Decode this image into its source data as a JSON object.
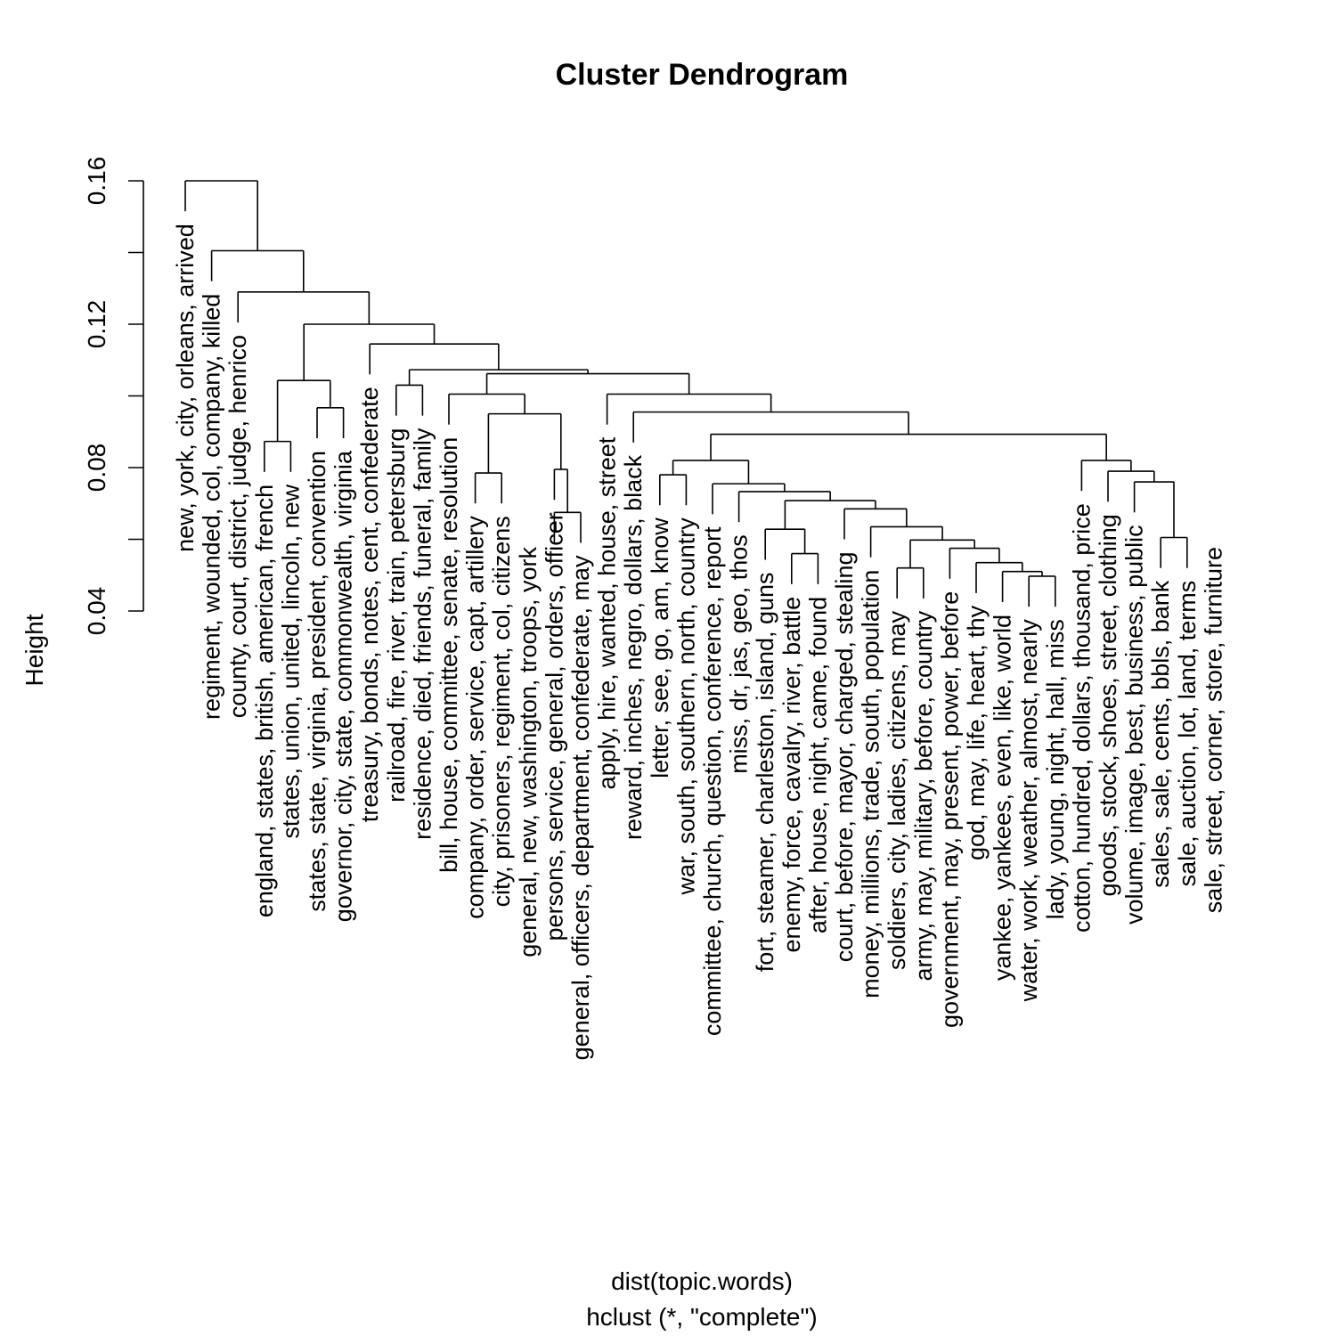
{
  "chart_data": {
    "type": "dendrogram",
    "title": "Cluster Dendrogram",
    "xlabel": "dist(topic.words)",
    "sub": "hclust (*, \"complete\")",
    "ylabel": "Height",
    "ylim": [
      0.04,
      0.16
    ],
    "yticks": [
      0.04,
      0.08,
      0.12,
      0.16
    ],
    "ytick_labels": [
      "0.04",
      "0.08",
      "0.12",
      "0.16"
    ],
    "hang_height": 0.0085,
    "leaves": [
      "new, york, city, orleans, arrived",
      "regiment, wounded, col, company, killed",
      "county, court, district, judge, henrico",
      "england, states, british, american, french",
      "states, union, united, lincoln, new",
      "states, state, virginia, president, convention",
      "governor, city, state, commonwealth, virginia",
      "treasury, bonds, notes, cent, confederate",
      "railroad, fire, river, train, petersburg",
      "residence, died, friends, funeral, family",
      "bill, house, committee, senate, resolution",
      "company, order, service, capt, artillery",
      "city, prisoners, regiment, col, citizens",
      "general, new, washington, troops, york",
      "persons, service, general, orders, officer",
      "general, officers, department, confederate, may",
      "apply, hire, wanted, house, street",
      "reward, inches, negro, dollars, black",
      "letter, see, go, am, know",
      "war, south, southern, north, country",
      "committee, church, question, conference, report",
      "miss, dr, jas, geo, thos",
      "fort, steamer, charleston, island, guns",
      "enemy, force, cavalry, river, battle",
      "after, house, night, came, found",
      "court, before, mayor, charged, stealing",
      "money, millions, trade, south, population",
      "soldiers, city, ladies, citizens, may",
      "army, may, military, before, country",
      "government, may, present, power, before",
      "god, may, life, heart, thy",
      "yankee, yankees, even, like, world",
      "water, work, weather, almost, nearly",
      "lady, young, night, hall, miss",
      "cotton, hundred, dollars, thousand, price",
      "goods, stock, shoes, street, clothing",
      "volume, image, best, business, public",
      "sales, sale, cents, bbls, bank",
      "sale, auction, lot, land, terms",
      "sale, street, corner, store, furniture"
    ],
    "merges": [
      {
        "a": "L33",
        "b": "L34",
        "h": 0.0497
      },
      {
        "a": "L38",
        "b": "L39",
        "h": 0.0605
      },
      {
        "a": "L32",
        "b": "M0",
        "h": 0.051
      },
      {
        "a": "L24",
        "b": "L25",
        "h": 0.056
      },
      {
        "a": "L37",
        "b": "M1",
        "h": 0.076
      },
      {
        "a": "L31",
        "b": "M2",
        "h": 0.0535
      },
      {
        "a": "L23",
        "b": "M3",
        "h": 0.0628
      },
      {
        "a": "L30",
        "b": "M5",
        "h": 0.0575
      },
      {
        "a": "L29",
        "b": "L28",
        "h": 0.052
      },
      {
        "a": "L36",
        "b": "M4",
        "h": 0.079
      },
      {
        "a": "M8",
        "b": "M7",
        "h": 0.0598
      },
      {
        "a": "L27",
        "b": "M10",
        "h": 0.0635
      },
      {
        "a": "L26",
        "b": "M11",
        "h": 0.0685
      },
      {
        "a": "L35",
        "b": "M9",
        "h": 0.082
      },
      {
        "a": "M12",
        "b": "M6",
        "h": 0.0708
      },
      {
        "a": "L22",
        "b": "M14",
        "h": 0.0733
      },
      {
        "a": "L21",
        "b": "M15",
        "h": 0.0755
      },
      {
        "a": "L19",
        "b": "L20",
        "h": 0.078
      },
      {
        "a": "M17",
        "b": "M16",
        "h": 0.082
      },
      {
        "a": "L15",
        "b": "L16",
        "h": 0.0675
      },
      {
        "a": "L15b",
        "b": "M19",
        "h": 0.0795
      },
      {
        "a": "L12",
        "b": "L13",
        "h": 0.0785
      },
      {
        "a": "M18",
        "b": "M13",
        "h": 0.0893
      },
      {
        "a": "L4",
        "b": "L5",
        "h": 0.0873
      },
      {
        "a": "L6",
        "b": "L7",
        "h": 0.0967
      },
      {
        "a": "L18",
        "b": "M22",
        "h": 0.0955
      },
      {
        "a": "M21",
        "b": "M20",
        "h": 0.095
      },
      {
        "a": "L9",
        "b": "L10",
        "h": 0.103
      },
      {
        "a": "L17",
        "b": "M25",
        "h": 0.1005
      },
      {
        "a": "L11",
        "b": "M26",
        "h": 0.1005
      },
      {
        "a": "M23",
        "b": "M24",
        "h": 0.1043
      },
      {
        "a": "M29",
        "b": "M28",
        "h": 0.1062
      },
      {
        "a": "M27",
        "b": "M31",
        "h": 0.1073
      },
      {
        "a": "L8",
        "b": "M32",
        "h": 0.1145
      },
      {
        "a": "M30",
        "b": "M33",
        "h": 0.12
      },
      {
        "a": "L3",
        "b": "M34",
        "h": 0.129
      },
      {
        "a": "L2",
        "b": "M35",
        "h": 0.1405
      },
      {
        "a": "L1",
        "b": "M36",
        "h": 0.16
      }
    ]
  }
}
